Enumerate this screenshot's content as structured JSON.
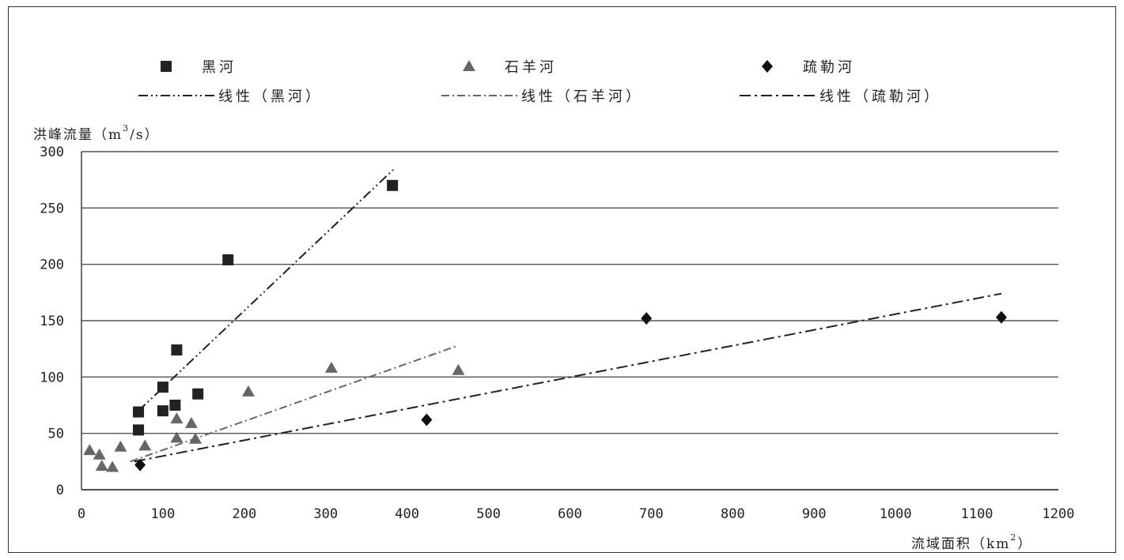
{
  "chart_data": {
    "type": "scatter",
    "ylabel_prefix": "洪峰流量（m",
    "ylabel_sup": "3",
    "ylabel_suffix": "/s）",
    "xlabel_prefix": "流域面积（km",
    "xlabel_sup": "2",
    "xlabel_suffix": "）",
    "xlim": [
      0,
      1200
    ],
    "ylim": [
      0,
      300
    ],
    "xticks": [
      0,
      100,
      200,
      300,
      400,
      500,
      600,
      700,
      800,
      900,
      1000,
      1100,
      1200
    ],
    "yticks": [
      0,
      50,
      100,
      150,
      200,
      250,
      300
    ],
    "grid": "horizontal",
    "legend_position": "top",
    "series": [
      {
        "name": "黑河",
        "marker": "square",
        "color": "#222222",
        "points": [
          [
            70,
            69
          ],
          [
            70,
            53
          ],
          [
            100,
            91
          ],
          [
            100,
            70
          ],
          [
            115,
            75
          ],
          [
            117,
            124
          ],
          [
            143,
            85
          ],
          [
            180,
            204
          ],
          [
            382,
            270
          ]
        ],
        "trendline": {
          "name": "线性（黑河）",
          "x": [
            70,
            383
          ],
          "y": [
            70,
            284
          ]
        }
      },
      {
        "name": "石羊河",
        "marker": "triangle",
        "color": "#666666",
        "points": [
          [
            10,
            35
          ],
          [
            22,
            31
          ],
          [
            25,
            21
          ],
          [
            38,
            20
          ],
          [
            48,
            38
          ],
          [
            78,
            39
          ],
          [
            117,
            63
          ],
          [
            117,
            46
          ],
          [
            135,
            59
          ],
          [
            140,
            45
          ],
          [
            205,
            87
          ],
          [
            307,
            108
          ],
          [
            463,
            106
          ]
        ],
        "trendline": {
          "name": "线性（石羊河）",
          "x": [
            60,
            463
          ],
          "y": [
            25,
            128
          ]
        }
      },
      {
        "name": "疏勒河",
        "marker": "diamond",
        "color": "#111111",
        "points": [
          [
            72,
            22
          ],
          [
            424,
            62
          ],
          [
            694,
            152
          ],
          [
            1130,
            153
          ]
        ],
        "trendline": {
          "name": "线性（疏勒河）",
          "x": [
            65,
            1130
          ],
          "y": [
            25,
            174
          ]
        }
      }
    ]
  }
}
